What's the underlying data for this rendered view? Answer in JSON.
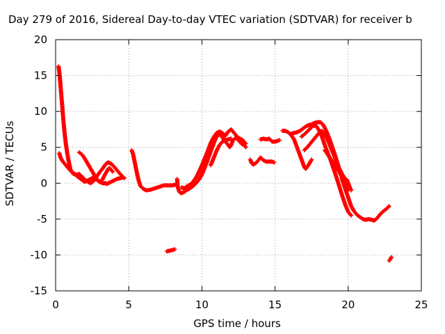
{
  "chart_data": {
    "type": "scatter",
    "title": "Day 279 of 2016, Sidereal Day-to-day VTEC variation (SDTVAR) for receiver b",
    "xlabel": "GPS time / hours",
    "ylabel": "SDTVAR / TECUs",
    "xlim": [
      0,
      25
    ],
    "ylim": [
      -15,
      20
    ],
    "xticks": [
      "0",
      "5",
      "10",
      "15",
      "20",
      "25"
    ],
    "yticks": [
      "-15",
      "-10",
      "-5",
      "0",
      "5",
      "10",
      "15",
      "20"
    ],
    "grid": true,
    "marker": "+",
    "color": "#ff0000",
    "series": [
      {
        "name": "SDTVAR",
        "segments": [
          [
            [
              0.2,
              16.3
            ],
            [
              0.25,
              15.5
            ],
            [
              0.3,
              14.5
            ],
            [
              0.35,
              13.2
            ],
            [
              0.4,
              12.0
            ],
            [
              0.45,
              10.8
            ],
            [
              0.5,
              9.5
            ],
            [
              0.55,
              8.3
            ],
            [
              0.6,
              7.3
            ],
            [
              0.65,
              6.3
            ],
            [
              0.7,
              5.5
            ],
            [
              0.75,
              4.8
            ],
            [
              0.8,
              4.1
            ],
            [
              0.85,
              3.5
            ],
            [
              0.9,
              3.0
            ],
            [
              0.95,
              2.5
            ],
            [
              1.0,
              2.0
            ],
            [
              1.1,
              1.6
            ],
            [
              1.2,
              1.3
            ],
            [
              1.35,
              1.2
            ],
            [
              1.5,
              1.2
            ],
            [
              1.6,
              1.3
            ],
            [
              1.7,
              1.1
            ],
            [
              1.85,
              0.8
            ],
            [
              2.0,
              0.5
            ],
            [
              2.2,
              0.2
            ],
            [
              2.4,
              0.0
            ],
            [
              2.6,
              0.3
            ],
            [
              2.8,
              0.9
            ],
            [
              3.0,
              1.5
            ],
            [
              3.2,
              2.0
            ],
            [
              3.4,
              2.6
            ],
            [
              3.5,
              2.8
            ],
            [
              3.6,
              2.9
            ],
            [
              3.8,
              2.7
            ],
            [
              4.0,
              2.3
            ],
            [
              4.2,
              1.8
            ],
            [
              4.4,
              1.3
            ],
            [
              4.6,
              0.9
            ],
            [
              4.7,
              0.7
            ]
          ],
          [
            [
              0.25,
              4.2
            ],
            [
              0.35,
              3.5
            ],
            [
              0.5,
              3.0
            ],
            [
              0.7,
              2.5
            ],
            [
              0.9,
              2.0
            ],
            [
              1.1,
              1.6
            ],
            [
              1.3,
              1.3
            ],
            [
              1.5,
              0.9
            ],
            [
              1.7,
              0.6
            ],
            [
              1.9,
              0.3
            ],
            [
              2.0,
              0.2
            ],
            [
              2.2,
              0.4
            ],
            [
              2.4,
              0.6
            ],
            [
              2.6,
              0.8
            ],
            [
              2.8,
              0.5
            ],
            [
              3.0,
              0.2
            ],
            [
              3.2,
              0.0
            ],
            [
              3.4,
              0.0
            ],
            [
              3.5,
              -0.1
            ],
            [
              3.6,
              0.0
            ],
            [
              3.8,
              0.2
            ],
            [
              4.0,
              0.4
            ],
            [
              4.2,
              0.6
            ],
            [
              4.4,
              0.7
            ],
            [
              4.6,
              0.8
            ]
          ],
          [
            [
              1.6,
              4.3
            ],
            [
              1.8,
              4.0
            ],
            [
              2.0,
              3.4
            ],
            [
              2.2,
              2.7
            ],
            [
              2.4,
              2.0
            ],
            [
              2.6,
              1.3
            ],
            [
              2.8,
              0.6
            ],
            [
              3.0,
              0.2
            ],
            [
              3.2,
              0.5
            ],
            [
              3.4,
              1.3
            ],
            [
              3.6,
              2.0
            ],
            [
              3.7,
              2.1
            ],
            [
              3.9,
              1.6
            ]
          ],
          [
            [
              5.2,
              4.6
            ],
            [
              5.3,
              4.0
            ],
            [
              5.4,
              3.0
            ],
            [
              5.5,
              2.0
            ],
            [
              5.6,
              1.0
            ],
            [
              5.7,
              0.2
            ],
            [
              5.8,
              -0.4
            ],
            [
              6.0,
              -0.8
            ],
            [
              6.2,
              -1.0
            ],
            [
              6.5,
              -0.9
            ],
            [
              6.8,
              -0.7
            ],
            [
              7.1,
              -0.5
            ],
            [
              7.4,
              -0.3
            ],
            [
              7.7,
              -0.3
            ],
            [
              8.0,
              -0.3
            ],
            [
              8.2,
              -0.2
            ]
          ],
          [
            [
              8.3,
              0.6
            ],
            [
              8.35,
              -0.5
            ],
            [
              8.45,
              -1.2
            ],
            [
              8.6,
              -1.4
            ],
            [
              8.8,
              -1.2
            ],
            [
              9.0,
              -0.9
            ],
            [
              9.2,
              -0.7
            ],
            [
              9.4,
              -0.4
            ],
            [
              9.6,
              0.0
            ],
            [
              9.8,
              0.5
            ],
            [
              10.0,
              1.2
            ],
            [
              10.2,
              2.2
            ],
            [
              10.4,
              3.3
            ],
            [
              10.6,
              4.4
            ],
            [
              10.8,
              5.5
            ],
            [
              11.0,
              6.5
            ],
            [
              11.2,
              6.8
            ],
            [
              11.4,
              6.4
            ],
            [
              11.6,
              5.8
            ],
            [
              11.8,
              5.3
            ],
            [
              11.9,
              5.0
            ],
            [
              12.0,
              5.3
            ],
            [
              12.1,
              5.9
            ],
            [
              12.3,
              6.3
            ],
            [
              12.5,
              6.0
            ],
            [
              12.7,
              5.5
            ],
            [
              12.9,
              5.3
            ],
            [
              13.0,
              5.0
            ]
          ],
          [
            [
              8.6,
              -0.6
            ],
            [
              8.8,
              -0.7
            ],
            [
              9.0,
              -0.4
            ],
            [
              9.2,
              -0.2
            ],
            [
              9.4,
              0.2
            ],
            [
              9.6,
              0.8
            ],
            [
              9.8,
              1.6
            ],
            [
              10.0,
              2.5
            ],
            [
              10.2,
              3.5
            ],
            [
              10.4,
              4.5
            ],
            [
              10.6,
              5.6
            ],
            [
              10.8,
              6.4
            ],
            [
              11.0,
              7.0
            ],
            [
              11.2,
              7.2
            ],
            [
              11.4,
              7.0
            ],
            [
              11.6,
              6.6
            ],
            [
              11.8,
              7.2
            ],
            [
              12.0,
              7.5
            ],
            [
              12.2,
              7.0
            ],
            [
              12.4,
              6.5
            ],
            [
              12.6,
              6.2
            ],
            [
              12.8,
              6.0
            ],
            [
              13.0,
              5.5
            ]
          ],
          [
            [
              10.6,
              2.5
            ],
            [
              10.8,
              3.5
            ],
            [
              11.0,
              4.5
            ],
            [
              11.2,
              5.3
            ],
            [
              11.4,
              5.8
            ],
            [
              11.6,
              6.0
            ],
            [
              11.8,
              6.1
            ],
            [
              12.0,
              6.2
            ]
          ],
          [
            [
              7.6,
              -9.5
            ],
            [
              7.8,
              -9.4
            ],
            [
              8.0,
              -9.3
            ],
            [
              8.15,
              -9.2
            ]
          ],
          [
            [
              13.3,
              3.3
            ],
            [
              13.4,
              2.8
            ],
            [
              13.5,
              2.6
            ],
            [
              13.7,
              2.8
            ],
            [
              13.9,
              3.3
            ],
            [
              14.0,
              3.6
            ],
            [
              14.2,
              3.2
            ],
            [
              14.4,
              3.0
            ],
            [
              14.6,
              3.0
            ],
            [
              14.8,
              3.0
            ],
            [
              14.95,
              2.9
            ]
          ],
          [
            [
              14.0,
              6.1
            ],
            [
              14.2,
              6.2
            ],
            [
              14.4,
              6.1
            ],
            [
              14.6,
              6.2
            ],
            [
              14.8,
              5.8
            ],
            [
              15.0,
              5.8
            ],
            [
              15.2,
              5.9
            ],
            [
              15.3,
              6.0
            ]
          ],
          [
            [
              15.5,
              7.3
            ],
            [
              15.7,
              7.3
            ],
            [
              15.9,
              7.1
            ],
            [
              16.1,
              6.7
            ],
            [
              16.3,
              6.1
            ],
            [
              16.5,
              5.0
            ],
            [
              16.7,
              3.9
            ],
            [
              16.9,
              2.8
            ],
            [
              17.0,
              2.2
            ],
            [
              17.1,
              2.0
            ],
            [
              17.3,
              2.6
            ],
            [
              17.5,
              3.3
            ]
          ],
          [
            [
              16.1,
              6.9
            ],
            [
              16.3,
              7.0
            ],
            [
              16.5,
              7.1
            ],
            [
              16.7,
              7.3
            ],
            [
              16.9,
              7.6
            ],
            [
              17.1,
              7.9
            ],
            [
              17.3,
              8.1
            ],
            [
              17.5,
              8.2
            ],
            [
              17.7,
              8.4
            ],
            [
              17.9,
              8.5
            ],
            [
              18.1,
              8.5
            ],
            [
              18.3,
              8.1
            ],
            [
              18.5,
              7.3
            ],
            [
              18.7,
              6.3
            ],
            [
              18.9,
              5.1
            ],
            [
              19.1,
              3.9
            ],
            [
              19.3,
              2.6
            ],
            [
              19.5,
              1.3
            ],
            [
              19.6,
              0.4
            ],
            [
              19.8,
              -0.8
            ],
            [
              20.0,
              -2.0
            ],
            [
              20.2,
              -3.2
            ],
            [
              20.4,
              -3.9
            ],
            [
              20.6,
              -4.4
            ],
            [
              20.8,
              -4.7
            ],
            [
              21.0,
              -5.0
            ],
            [
              21.2,
              -5.1
            ],
            [
              21.4,
              -5.0
            ],
            [
              21.6,
              -5.1
            ],
            [
              21.8,
              -5.2
            ],
            [
              22.0,
              -4.8
            ],
            [
              22.2,
              -4.3
            ],
            [
              22.4,
              -3.9
            ],
            [
              22.6,
              -3.6
            ],
            [
              22.8,
              -3.2
            ]
          ],
          [
            [
              16.8,
              6.5
            ],
            [
              17.0,
              6.8
            ],
            [
              17.2,
              7.2
            ],
            [
              17.4,
              7.6
            ],
            [
              17.6,
              8.0
            ],
            [
              17.8,
              8.0
            ],
            [
              18.0,
              7.4
            ],
            [
              18.2,
              6.5
            ],
            [
              18.4,
              5.3
            ],
            [
              18.6,
              4.2
            ],
            [
              18.8,
              3.2
            ],
            [
              19.0,
              2.0
            ],
            [
              19.2,
              0.8
            ],
            [
              19.4,
              -0.5
            ],
            [
              19.6,
              -1.8
            ],
            [
              19.8,
              -3.0
            ],
            [
              20.0,
              -4.0
            ],
            [
              20.2,
              -4.5
            ]
          ],
          [
            [
              17.0,
              4.6
            ],
            [
              17.2,
              5.0
            ],
            [
              17.4,
              5.5
            ],
            [
              17.6,
              6.0
            ],
            [
              17.8,
              6.5
            ],
            [
              18.0,
              7.0
            ],
            [
              18.2,
              7.3
            ],
            [
              18.4,
              6.8
            ],
            [
              18.6,
              6.0
            ],
            [
              18.8,
              5.0
            ],
            [
              19.0,
              4.0
            ],
            [
              19.2,
              3.0
            ],
            [
              19.4,
              2.0
            ],
            [
              19.6,
              1.2
            ],
            [
              19.8,
              0.6
            ],
            [
              19.9,
              0.5
            ],
            [
              20.0,
              0.0
            ],
            [
              20.2,
              -1.0
            ]
          ],
          [
            [
              18.4,
              4.6
            ],
            [
              18.6,
              4.0
            ],
            [
              18.8,
              3.4
            ],
            [
              19.0,
              2.8
            ],
            [
              19.2,
              2.2
            ],
            [
              19.4,
              1.5
            ],
            [
              19.6,
              0.7
            ],
            [
              19.8,
              -0.2
            ],
            [
              20.0,
              -1.0
            ]
          ],
          [
            [
              22.8,
              -10.8
            ],
            [
              22.9,
              -10.5
            ],
            [
              22.95,
              -10.3
            ]
          ]
        ]
      }
    ]
  }
}
